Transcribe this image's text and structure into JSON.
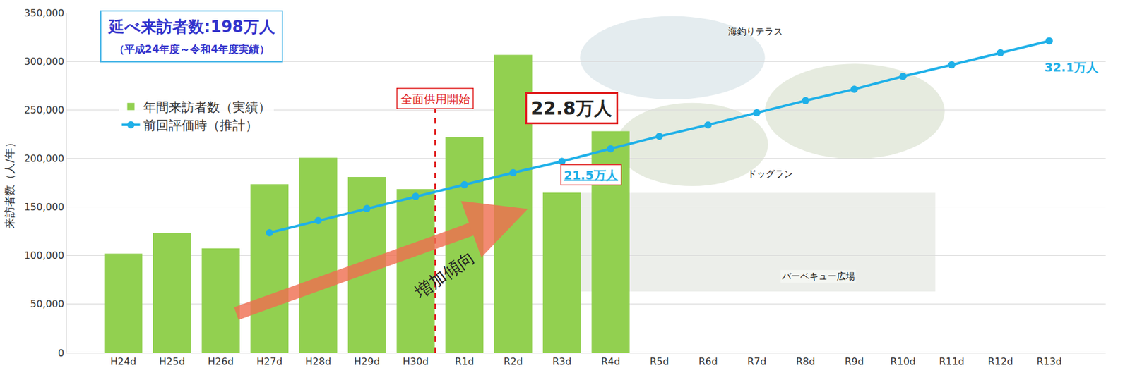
{
  "chart_data": {
    "type": "bar",
    "categories": [
      "H24d",
      "H25d",
      "H26d",
      "H27d",
      "H28d",
      "H29d",
      "H30d",
      "R1d",
      "R2d",
      "R3d",
      "R4d",
      "R5d",
      "R6d",
      "R7d",
      "R8d",
      "R9d",
      "R10d",
      "R11d",
      "R12d",
      "R13d"
    ],
    "series": [
      {
        "name": "年間来訪者数（実績）",
        "type": "bar",
        "color": "#92d050",
        "values": [
          102000,
          123500,
          107500,
          173500,
          200700,
          181000,
          168500,
          222000,
          306600,
          164700,
          228000,
          null,
          null,
          null,
          null,
          null,
          null,
          null,
          null,
          null
        ]
      },
      {
        "name": "前回評価時（推計）",
        "type": "line",
        "color": "#1fb0e8",
        "marker": "circle",
        "values": [
          null,
          null,
          null,
          123500,
          136000,
          148500,
          161000,
          173000,
          185300,
          197000,
          210000,
          222800,
          234500,
          247000,
          259500,
          271300,
          284500,
          296300,
          308800,
          321000
        ]
      }
    ],
    "y_label": "来訪者数（人/年）",
    "ylim": [
      0,
      350000
    ],
    "yticks": [
      0,
      {
        "value": 50000,
        "label": "50,000"
      },
      {
        "value": 100000,
        "label": "100,000"
      },
      {
        "value": 150000,
        "label": "150,000"
      },
      {
        "value": 200000,
        "label": "200,000"
      },
      {
        "value": 250000,
        "label": "250,000"
      },
      {
        "value": 300000,
        "label": "300,000"
      },
      {
        "value": 350000,
        "label": "350,000"
      }
    ],
    "grid": true,
    "legend": "upper left",
    "callout": [
      "延べ来訪者数:198万人",
      "（平成24年度～令和4年度実績）"
    ],
    "event_label": "全面供用開始",
    "trend_label": "増加傾向",
    "value_notes": [
      "22.8万人",
      "21.5万人",
      "32.1万人"
    ],
    "photo_labels": [
      "海釣りテラス",
      "ドッグラン",
      "バーベキュー広場"
    ]
  }
}
